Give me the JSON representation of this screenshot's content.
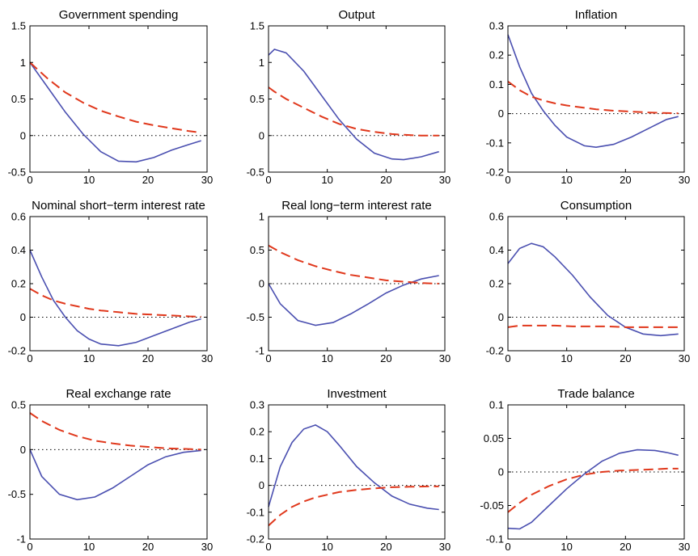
{
  "colors": {
    "solid_series": "#4a4fb0",
    "dashed_series": "#e0381c",
    "zero_line": "#000000"
  },
  "chart_data": [
    {
      "type": "line",
      "title": "Government spending",
      "xlim": [
        0,
        30
      ],
      "ylim": [
        -0.5,
        1.5
      ],
      "xticks": [
        "0",
        "10",
        "20",
        "30"
      ],
      "yticks": [
        "-0.5",
        "0",
        "0.5",
        "1",
        "1.5"
      ],
      "x": [
        0,
        3,
        6,
        9,
        12,
        15,
        18,
        21,
        24,
        27,
        29
      ],
      "series": [
        {
          "style": "solid",
          "values": [
            1.0,
            0.66,
            0.32,
            0.02,
            -0.22,
            -0.35,
            -0.36,
            -0.3,
            -0.2,
            -0.12,
            -0.07
          ]
        },
        {
          "style": "dashed",
          "values": [
            1.0,
            0.78,
            0.59,
            0.45,
            0.34,
            0.26,
            0.19,
            0.14,
            0.1,
            0.06,
            0.04
          ]
        }
      ]
    },
    {
      "type": "line",
      "title": "Output",
      "xlim": [
        0,
        30
      ],
      "ylim": [
        -0.5,
        1.5
      ],
      "xticks": [
        "0",
        "10",
        "20",
        "30"
      ],
      "yticks": [
        "-0.5",
        "0",
        "0.5",
        "1",
        "1.5"
      ],
      "x": [
        0,
        1,
        3,
        6,
        9,
        12,
        15,
        18,
        21,
        23,
        26,
        29
      ],
      "series": [
        {
          "style": "solid",
          "values": [
            1.1,
            1.18,
            1.13,
            0.88,
            0.55,
            0.22,
            -0.05,
            -0.24,
            -0.32,
            -0.33,
            -0.29,
            -0.22
          ]
        },
        {
          "style": "dashed",
          "values": [
            0.66,
            0.6,
            0.5,
            0.38,
            0.26,
            0.16,
            0.09,
            0.05,
            0.02,
            0.01,
            0.0,
            0.0
          ]
        }
      ]
    },
    {
      "type": "line",
      "title": "Inflation",
      "xlim": [
        0,
        30
      ],
      "ylim": [
        -0.2,
        0.3
      ],
      "xticks": [
        "0",
        "10",
        "20",
        "30"
      ],
      "yticks": [
        "-0.2",
        "-0.1",
        "0",
        "0.1",
        "0.2",
        "0.3"
      ],
      "x": [
        0,
        2,
        4,
        6,
        8,
        10,
        13,
        15,
        18,
        21,
        24,
        27,
        29
      ],
      "series": [
        {
          "style": "solid",
          "values": [
            0.27,
            0.16,
            0.07,
            0.01,
            -0.04,
            -0.08,
            -0.11,
            -0.115,
            -0.105,
            -0.08,
            -0.05,
            -0.02,
            -0.01
          ]
        },
        {
          "style": "dashed",
          "values": [
            0.11,
            0.08,
            0.058,
            0.045,
            0.035,
            0.028,
            0.02,
            0.015,
            0.01,
            0.007,
            0.004,
            0.002,
            0.001
          ]
        }
      ]
    },
    {
      "type": "line",
      "title": "Nominal short−term interest rate",
      "xlim": [
        0,
        30
      ],
      "ylim": [
        -0.2,
        0.6
      ],
      "xticks": [
        "0",
        "10",
        "20",
        "30"
      ],
      "yticks": [
        "-0.2",
        "0",
        "0.2",
        "0.4",
        "0.6"
      ],
      "x": [
        0,
        2,
        4,
        6,
        8,
        10,
        12,
        15,
        18,
        21,
        24,
        27,
        29
      ],
      "series": [
        {
          "style": "solid",
          "values": [
            0.4,
            0.24,
            0.1,
            0.0,
            -0.08,
            -0.13,
            -0.16,
            -0.17,
            -0.15,
            -0.11,
            -0.07,
            -0.03,
            -0.01
          ]
        },
        {
          "style": "dashed",
          "values": [
            0.17,
            0.13,
            0.1,
            0.08,
            0.065,
            0.05,
            0.04,
            0.03,
            0.02,
            0.015,
            0.01,
            0.005,
            0.003
          ]
        }
      ]
    },
    {
      "type": "line",
      "title": "Real long−term interest rate",
      "xlim": [
        0,
        30
      ],
      "ylim": [
        -1,
        1
      ],
      "xticks": [
        "0",
        "10",
        "20",
        "30"
      ],
      "yticks": [
        "-1",
        "-0.5",
        "0",
        "0.5",
        "1"
      ],
      "x": [
        0,
        2,
        5,
        8,
        11,
        14,
        17,
        20,
        23,
        26,
        29
      ],
      "series": [
        {
          "style": "solid",
          "values": [
            0.0,
            -0.3,
            -0.55,
            -0.62,
            -0.58,
            -0.45,
            -0.3,
            -0.14,
            -0.02,
            0.07,
            0.12
          ]
        },
        {
          "style": "dashed",
          "values": [
            0.57,
            0.47,
            0.35,
            0.26,
            0.19,
            0.13,
            0.09,
            0.05,
            0.03,
            0.01,
            0.0
          ]
        }
      ]
    },
    {
      "type": "line",
      "title": "Consumption",
      "xlim": [
        0,
        30
      ],
      "ylim": [
        -0.2,
        0.6
      ],
      "xticks": [
        "0",
        "10",
        "20",
        "30"
      ],
      "yticks": [
        "-0.2",
        "0",
        "0.2",
        "0.4",
        "0.6"
      ],
      "x": [
        0,
        2,
        4,
        6,
        8,
        11,
        14,
        17,
        20,
        23,
        26,
        29
      ],
      "series": [
        {
          "style": "solid",
          "values": [
            0.32,
            0.41,
            0.44,
            0.42,
            0.36,
            0.25,
            0.12,
            0.01,
            -0.06,
            -0.1,
            -0.11,
            -0.1
          ]
        },
        {
          "style": "dashed",
          "values": [
            -0.06,
            -0.05,
            -0.05,
            -0.05,
            -0.05,
            -0.055,
            -0.055,
            -0.055,
            -0.06,
            -0.06,
            -0.06,
            -0.06
          ]
        }
      ]
    },
    {
      "type": "line",
      "title": "Real exchange rate",
      "xlim": [
        0,
        30
      ],
      "ylim": [
        -1,
        0.5
      ],
      "xticks": [
        "0",
        "10",
        "20",
        "30"
      ],
      "yticks": [
        "-1",
        "-0.5",
        "0",
        "0.5"
      ],
      "x": [
        0,
        2,
        5,
        8,
        11,
        14,
        17,
        20,
        23,
        26,
        29
      ],
      "series": [
        {
          "style": "solid",
          "values": [
            0.0,
            -0.3,
            -0.5,
            -0.56,
            -0.53,
            -0.43,
            -0.3,
            -0.17,
            -0.08,
            -0.03,
            -0.01
          ]
        },
        {
          "style": "dashed",
          "values": [
            0.41,
            0.32,
            0.22,
            0.15,
            0.1,
            0.07,
            0.045,
            0.03,
            0.015,
            0.008,
            0.0
          ]
        }
      ]
    },
    {
      "type": "line",
      "title": "Investment",
      "xlim": [
        0,
        30
      ],
      "ylim": [
        -0.2,
        0.3
      ],
      "xticks": [
        "0",
        "10",
        "20",
        "30"
      ],
      "yticks": [
        "-0.2",
        "-0.1",
        "0",
        "0.1",
        "0.2",
        "0.3"
      ],
      "x": [
        0,
        2,
        4,
        6,
        8,
        10,
        12,
        15,
        18,
        21,
        24,
        27,
        29
      ],
      "series": [
        {
          "style": "solid",
          "values": [
            -0.08,
            0.07,
            0.16,
            0.21,
            0.225,
            0.2,
            0.15,
            0.07,
            0.01,
            -0.04,
            -0.07,
            -0.085,
            -0.09
          ]
        },
        {
          "style": "dashed",
          "values": [
            -0.15,
            -0.11,
            -0.08,
            -0.06,
            -0.045,
            -0.035,
            -0.025,
            -0.017,
            -0.011,
            -0.007,
            -0.005,
            -0.004,
            -0.004
          ]
        }
      ]
    },
    {
      "type": "line",
      "title": "Trade balance",
      "xlim": [
        0,
        30
      ],
      "ylim": [
        -0.1,
        0.1
      ],
      "xticks": [
        "0",
        "10",
        "20",
        "30"
      ],
      "yticks": [
        "-0.1",
        "-0.05",
        "0",
        "0.05",
        "0.1"
      ],
      "x": [
        0,
        2,
        4,
        7,
        10,
        13,
        16,
        19,
        22,
        25,
        27,
        29
      ],
      "series": [
        {
          "style": "solid",
          "values": [
            -0.084,
            -0.085,
            -0.075,
            -0.05,
            -0.025,
            -0.003,
            0.016,
            0.028,
            0.033,
            0.032,
            0.029,
            0.025
          ]
        },
        {
          "style": "dashed",
          "values": [
            -0.06,
            -0.046,
            -0.034,
            -0.021,
            -0.011,
            -0.004,
            0.0,
            0.002,
            0.003,
            0.004,
            0.005,
            0.005
          ]
        }
      ]
    }
  ]
}
